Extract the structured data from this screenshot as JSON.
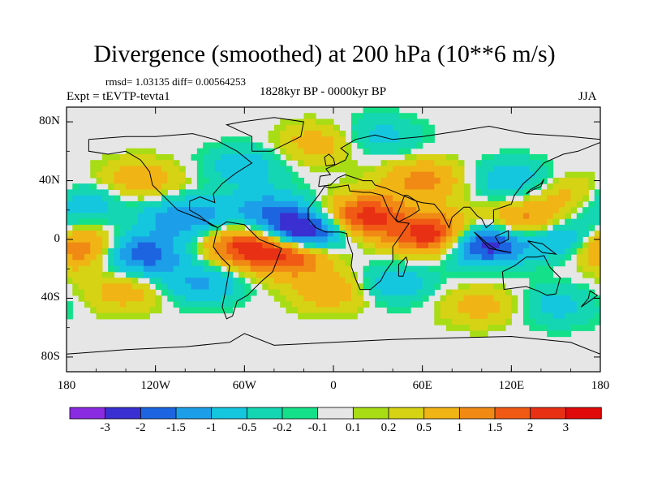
{
  "chart_data": {
    "type": "heatmap",
    "title": "Divergence (smoothed) at 200 hPa (10**6 m/s)",
    "stats": "rmsd= 1.03135 diff= 0.00564253",
    "experiment": "Expt = tEVTP-tevta1",
    "period": "1828kyr BP - 0000kyr BP",
    "season": "JJA",
    "x_ticks": [
      "180",
      "120W",
      "60W",
      "0",
      "60E",
      "120E",
      "180"
    ],
    "y_ticks": [
      "80N",
      "40N",
      "0",
      "40S",
      "80S"
    ],
    "xlim": [
      -180,
      180
    ],
    "ylim": [
      -90,
      90
    ],
    "colorbar": {
      "levels": [
        "-3",
        "-2",
        "-1.5",
        "-1",
        "-0.5",
        "-0.2",
        "-0.1",
        "0.1",
        "0.2",
        "0.5",
        "1",
        "1.5",
        "2",
        "3"
      ],
      "colors": [
        "#8a2be2",
        "#3a2fd0",
        "#1c64e0",
        "#1c9fe8",
        "#14c7de",
        "#14d6b2",
        "#14e08a",
        "#e6e6e6",
        "#a8dc14",
        "#d6d214",
        "#f0b414",
        "#f08a14",
        "#f05a14",
        "#e83014",
        "#e00a0a"
      ]
    },
    "features": [
      {
        "lon": -20,
        "lat": 5,
        "value": -3.2
      },
      {
        "lon": 100,
        "lat": -2,
        "value": -3.0
      },
      {
        "lon": 20,
        "lat": 15,
        "value": 2.4
      },
      {
        "lon": 70,
        "lat": 3,
        "value": 2.8
      },
      {
        "lon": -30,
        "lat": -10,
        "value": 2.2
      },
      {
        "lon": -60,
        "lat": -4,
        "value": 2.0
      },
      {
        "lon": -130,
        "lat": -10,
        "value": -2.0
      },
      {
        "lon": -170,
        "lat": -6,
        "value": 1.6
      },
      {
        "lon": 150,
        "lat": 2,
        "value": -1.6
      },
      {
        "lon": 130,
        "lat": 10,
        "value": 1.8
      },
      {
        "lon": -100,
        "lat": 15,
        "value": -1.5
      },
      {
        "lon": -45,
        "lat": 20,
        "value": -1.2
      },
      {
        "lon": 60,
        "lat": 40,
        "value": 1.2
      },
      {
        "lon": -90,
        "lat": -30,
        "value": -1.1
      },
      {
        "lon": 0,
        "lat": -35,
        "value": 0.9
      },
      {
        "lon": 40,
        "lat": -30,
        "value": -0.9
      },
      {
        "lon": -140,
        "lat": -35,
        "value": 0.8
      },
      {
        "lon": 120,
        "lat": 40,
        "value": -0.9
      },
      {
        "lon": -130,
        "lat": 40,
        "value": 0.9
      },
      {
        "lon": 160,
        "lat": 30,
        "value": 0.8
      },
      {
        "lon": -10,
        "lat": 65,
        "value": 0.8
      },
      {
        "lon": 30,
        "lat": 70,
        "value": -0.7
      },
      {
        "lon": 100,
        "lat": -45,
        "value": 0.7
      },
      {
        "lon": 150,
        "lat": -45,
        "value": -0.7
      },
      {
        "lon": -170,
        "lat": 25,
        "value": -1.0
      },
      {
        "lon": -60,
        "lat": 50,
        "value": -0.8
      }
    ]
  }
}
